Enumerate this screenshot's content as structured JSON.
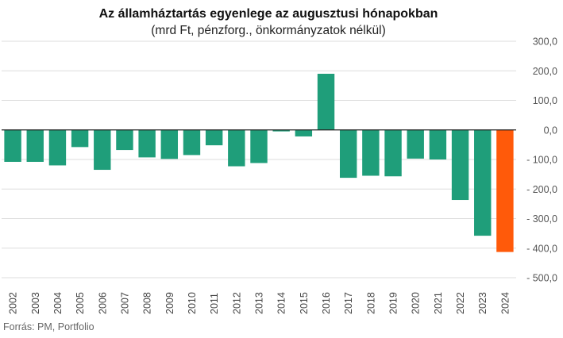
{
  "chart_data": {
    "type": "bar",
    "title": "Az államháztartás egyenlege az augusztusi hónapokban",
    "subtitle": "(mrd Ft, pénzforg., önkormányzatok nélkül)",
    "categories": [
      "2002",
      "2003",
      "2004",
      "2005",
      "2006",
      "2007",
      "2008",
      "2009",
      "2010",
      "2011",
      "2012",
      "2013",
      "2014",
      "2015",
      "2016",
      "2017",
      "2018",
      "2019",
      "2020",
      "2021",
      "2022",
      "2023",
      "2024"
    ],
    "values": [
      -108,
      -108,
      -120,
      -58,
      -135,
      -68,
      -93,
      -98,
      -85,
      -52,
      -123,
      -112,
      -5,
      -22,
      190,
      -162,
      -155,
      -157,
      -97,
      -100,
      -237,
      -358,
      -413
    ],
    "yticks": [
      "300,0",
      "200,0",
      "100,0",
      "0,0",
      "- 100,0",
      "- 200,0",
      "- 300,0",
      "- 400,0",
      "- 500,0"
    ],
    "ylim": [
      -500,
      300
    ],
    "grid": true,
    "colors": {
      "default": "#1f9e7a",
      "highlight": "#ff5a0a",
      "highlight_index": 22
    },
    "source": "Forrás: PM, Portfolio"
  }
}
